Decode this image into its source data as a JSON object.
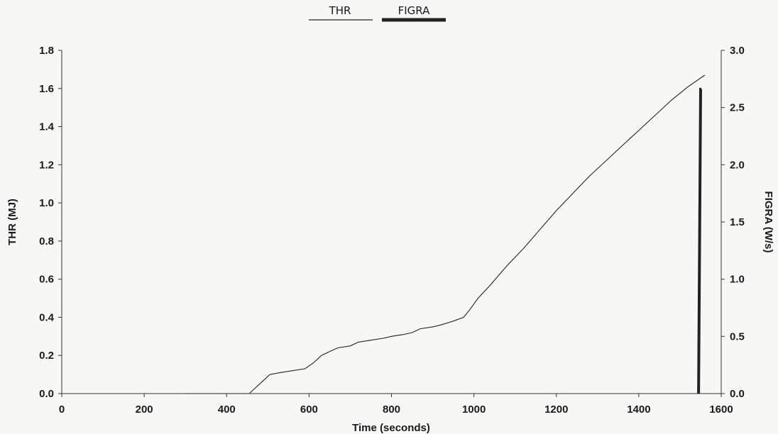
{
  "chart_data": {
    "type": "line",
    "xlabel": "Time (seconds)",
    "ylabel_left": "THR (MJ)",
    "ylabel_right": "FIGRA (W/s)",
    "xlim": [
      0,
      1600
    ],
    "ylim_left": [
      0,
      1.8
    ],
    "ylim_right": [
      0,
      3.0
    ],
    "x_ticks": [
      "0",
      "200",
      "400",
      "600",
      "800",
      "1000",
      "1200",
      "1400",
      "1600"
    ],
    "y_left_ticks": [
      "0.0",
      "0.2",
      "0.4",
      "0.6",
      "0.8",
      "1.0",
      "1.2",
      "1.4",
      "1.6",
      "1.8"
    ],
    "y_right_ticks": [
      "0.0",
      "0.5",
      "1.0",
      "1.5",
      "2.0",
      "2.5",
      "3.0"
    ],
    "grid": false,
    "legend_position": "top-center",
    "series": [
      {
        "name": "THR",
        "axis": "left",
        "color": "#222222",
        "x": [
          300,
          455,
          470,
          490,
          505,
          530,
          560,
          590,
          610,
          630,
          650,
          670,
          700,
          720,
          750,
          780,
          800,
          830,
          850,
          870,
          900,
          920,
          950,
          975,
          990,
          1010,
          1040,
          1080,
          1120,
          1160,
          1200,
          1240,
          1280,
          1320,
          1360,
          1400,
          1440,
          1480,
          1520,
          1560
        ],
        "y": [
          0.0,
          0.0,
          0.03,
          0.07,
          0.1,
          0.11,
          0.12,
          0.13,
          0.16,
          0.2,
          0.22,
          0.24,
          0.25,
          0.27,
          0.28,
          0.29,
          0.3,
          0.31,
          0.32,
          0.34,
          0.35,
          0.36,
          0.38,
          0.4,
          0.44,
          0.5,
          0.57,
          0.67,
          0.76,
          0.86,
          0.96,
          1.05,
          1.14,
          1.22,
          1.3,
          1.38,
          1.46,
          1.54,
          1.61,
          1.67
        ]
      },
      {
        "name": "FIGRA",
        "axis": "right",
        "color": "#222222",
        "x": [
          1545,
          1550,
          1552
        ],
        "y": [
          0.0,
          2.66,
          2.66
        ]
      }
    ]
  }
}
